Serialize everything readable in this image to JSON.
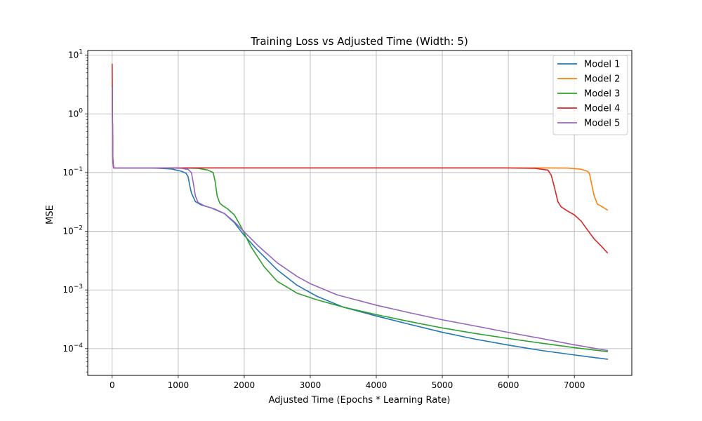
{
  "chart_data": {
    "type": "line",
    "title": "Training Loss vs Adjusted Time (Width: 5)",
    "xlabel": "Adjusted Time (Epochs * Learning Rate)",
    "ylabel": "MSE",
    "xlim": [
      -370,
      7870
    ],
    "ylim": [
      3.5e-05,
      12
    ],
    "yscale": "log",
    "grid": true,
    "legend_position": "top-right",
    "x_ticks": [
      0,
      1000,
      2000,
      3000,
      4000,
      5000,
      6000,
      7000
    ],
    "x_tick_labels": [
      "0",
      "1000",
      "2000",
      "3000",
      "4000",
      "5000",
      "6000",
      "7000"
    ],
    "y_ticks": [
      0.0001,
      0.001,
      0.01,
      0.1,
      1,
      10
    ],
    "y_tick_labels": [
      {
        "base": "10",
        "exp": "−4"
      },
      {
        "base": "10",
        "exp": "−3"
      },
      {
        "base": "10",
        "exp": "−2"
      },
      {
        "base": "10",
        "exp": "−1"
      },
      {
        "base": "10",
        "exp": "0"
      },
      {
        "base": "10",
        "exp": "1"
      }
    ],
    "series": [
      {
        "name": "Model 1",
        "color": "#1f77b4",
        "x": [
          0,
          10,
          25,
          600,
          900,
          1050,
          1120,
          1150,
          1175,
          1200,
          1260,
          1350,
          1500,
          1700,
          1850,
          2000,
          2200,
          2500,
          2800,
          3100,
          3500,
          4000,
          4500,
          5000,
          5500,
          6000,
          6500,
          7000,
          7500
        ],
        "y": [
          2.7,
          0.15,
          0.12,
          0.12,
          0.115,
          0.105,
          0.097,
          0.085,
          0.06,
          0.045,
          0.032,
          0.028,
          0.025,
          0.02,
          0.014,
          0.0085,
          0.0048,
          0.0022,
          0.0012,
          0.00078,
          0.00051,
          0.00036,
          0.00026,
          0.00019,
          0.000145,
          0.000115,
          9.3e-05,
          7.8e-05,
          6.6e-05
        ]
      },
      {
        "name": "Model 2",
        "color": "#ff7f0e",
        "x": [
          0,
          10,
          25,
          1000,
          3000,
          5000,
          6500,
          6900,
          7100,
          7200,
          7230,
          7260,
          7300,
          7350,
          7400,
          7500
        ],
        "y": [
          2.9,
          0.15,
          0.12,
          0.12,
          0.12,
          0.12,
          0.12,
          0.119,
          0.114,
          0.105,
          0.095,
          0.065,
          0.04,
          0.029,
          0.027,
          0.023
        ]
      },
      {
        "name": "Model 3",
        "color": "#2ca02c",
        "x": [
          0,
          10,
          25,
          1000,
          1300,
          1450,
          1530,
          1560,
          1590,
          1630,
          1680,
          1750,
          1850,
          1950,
          2100,
          2300,
          2500,
          2800,
          3100,
          3500,
          4000,
          4500,
          5000,
          5500,
          6000,
          6500,
          7000,
          7500
        ],
        "y": [
          2.9,
          0.15,
          0.12,
          0.12,
          0.118,
          0.11,
          0.1,
          0.07,
          0.04,
          0.03,
          0.027,
          0.024,
          0.019,
          0.012,
          0.0055,
          0.0025,
          0.0014,
          0.00088,
          0.00068,
          0.00051,
          0.00038,
          0.00029,
          0.000225,
          0.000181,
          0.000149,
          0.000124,
          0.000104,
          8.9e-05
        ]
      },
      {
        "name": "Model 4",
        "color": "#d62728",
        "x": [
          0,
          8,
          20,
          1000,
          3000,
          5000,
          6000,
          6400,
          6600,
          6650,
          6700,
          6750,
          6800,
          6900,
          7000,
          7100,
          7200,
          7300,
          7400,
          7500
        ],
        "y": [
          7.0,
          0.2,
          0.12,
          0.12,
          0.12,
          0.12,
          0.12,
          0.118,
          0.11,
          0.09,
          0.055,
          0.032,
          0.026,
          0.022,
          0.019,
          0.015,
          0.0105,
          0.0074,
          0.0057,
          0.0043
        ]
      },
      {
        "name": "Model 5",
        "color": "#9467bd",
        "x": [
          0,
          10,
          25,
          800,
          1050,
          1150,
          1200,
          1230,
          1260,
          1300,
          1400,
          1550,
          1700,
          1850,
          2000,
          2200,
          2500,
          2800,
          3000,
          3400,
          4000,
          4500,
          5000,
          5500,
          6000,
          6500,
          7000,
          7500
        ],
        "y": [
          2.8,
          0.15,
          0.12,
          0.12,
          0.118,
          0.113,
          0.1,
          0.065,
          0.04,
          0.031,
          0.027,
          0.024,
          0.02,
          0.0145,
          0.0098,
          0.0058,
          0.0029,
          0.0017,
          0.00128,
          0.00083,
          0.00055,
          0.00041,
          0.00031,
          0.000243,
          0.000189,
          0.000149,
          0.000116,
          9.3e-05
        ]
      }
    ]
  }
}
